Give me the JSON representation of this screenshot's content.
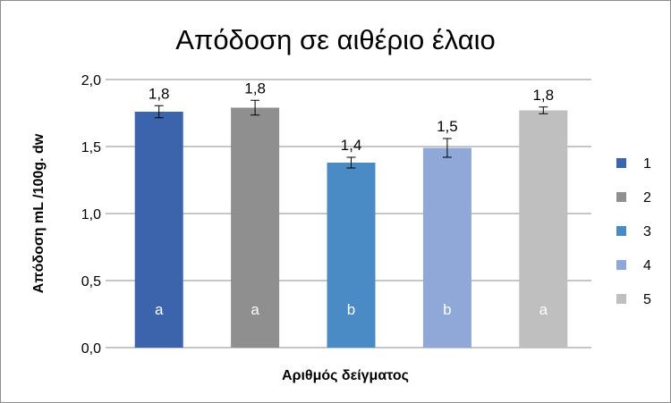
{
  "chart_data": {
    "type": "bar",
    "title": "Απόδοση σε αιθέριο έλαιο",
    "xlabel": "Αριθμός δείγματος",
    "ylabel": "Απόδοση mL /100g. dw",
    "ylim": [
      0,
      2
    ],
    "yticks": [
      "0,0",
      "0,5",
      "1,0",
      "1,5",
      "2,0"
    ],
    "ytick_values": [
      0,
      0.5,
      1,
      1.5,
      2
    ],
    "grid": true,
    "legend_position": "right",
    "categories": [
      "1",
      "2",
      "3",
      "4",
      "5"
    ],
    "values": [
      1.76,
      1.79,
      1.38,
      1.49,
      1.77
    ],
    "errors": [
      0.045,
      0.055,
      0.04,
      0.07,
      0.025
    ],
    "value_labels": [
      "1,8",
      "1,8",
      "1,4",
      "1,5",
      "1,8"
    ],
    "group_labels": [
      "a",
      "a",
      "b",
      "b",
      "a"
    ],
    "colors": [
      "#3b64ad",
      "#8f8f8f",
      "#4a8bc6",
      "#8fa8d8",
      "#bfbfbf"
    ]
  }
}
